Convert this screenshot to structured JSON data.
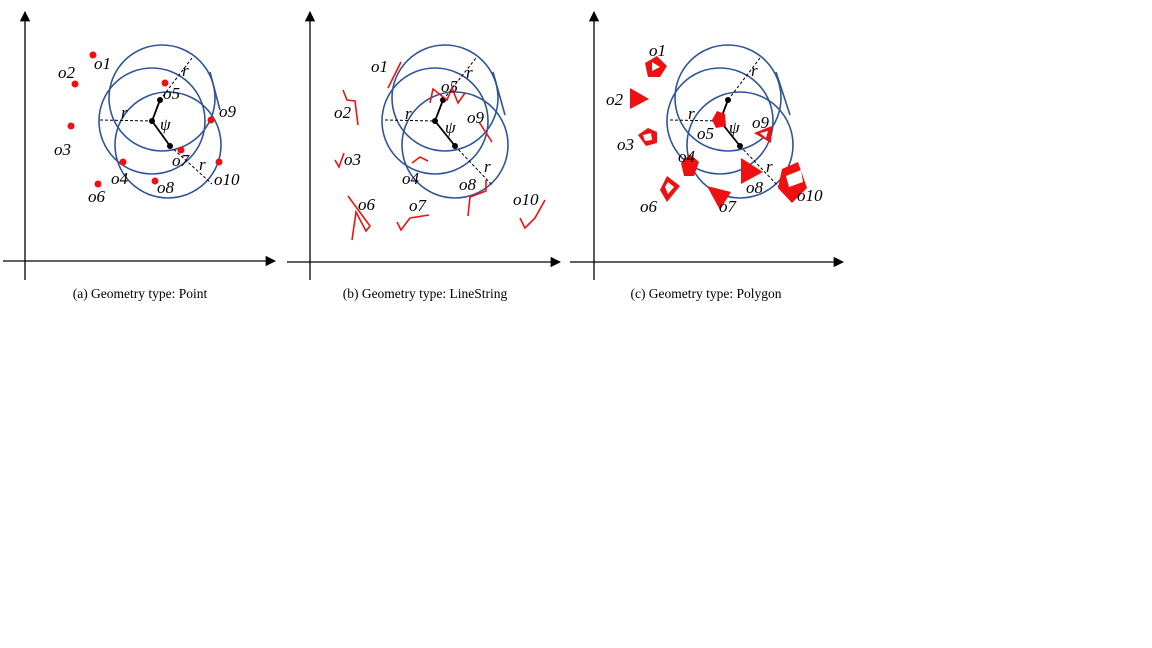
{
  "panels": [
    {
      "caption": "(a)  Geometry type: Point",
      "objects": [
        "o1",
        "o2",
        "o3",
        "o4",
        "o5",
        "o6",
        "o7",
        "o8",
        "o9",
        "o10"
      ],
      "psi": "ψ",
      "radius": "r"
    },
    {
      "caption": "(b)  Geometry type: LineString",
      "objects": [
        "o1",
        "o2",
        "o3",
        "o4",
        "o5",
        "o6",
        "o7",
        "o8",
        "o9",
        "o10"
      ],
      "psi": "ψ",
      "radius": "r"
    },
    {
      "caption": "(c)  Geometry type: Polygon",
      "objects": [
        "o1",
        "o2",
        "o3",
        "o4",
        "o5",
        "o6",
        "o7",
        "o8",
        "o9",
        "o10"
      ],
      "psi": "ψ",
      "radius": "r"
    }
  ],
  "colors": {
    "object": "#ee1111",
    "circle": "#2f5597",
    "axis": "#000000"
  }
}
